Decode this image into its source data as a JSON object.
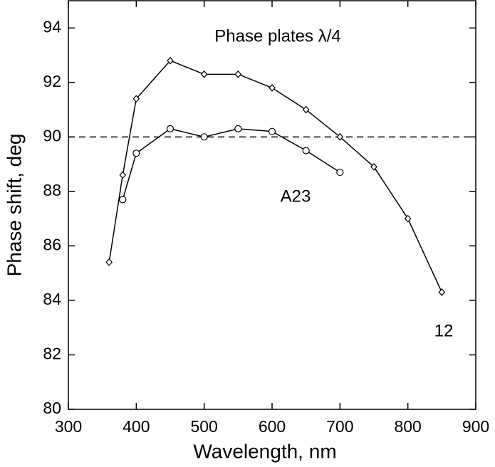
{
  "chart_data": {
    "type": "line",
    "title": "Phase plates λ/4",
    "x_label": "Wavelength, nm",
    "y_label": "Phase shift, deg",
    "xlim": [
      300,
      900
    ],
    "xticks": [
      300,
      400,
      500,
      600,
      700,
      800,
      900
    ],
    "ylim": [
      80,
      95
    ],
    "yticks": [
      80,
      82,
      84,
      86,
      88,
      90,
      92,
      94
    ],
    "hline": 90,
    "series": [
      {
        "name": "12",
        "color": "#000000",
        "marker": "diamond",
        "x": [
          360,
          380,
          400,
          450,
          500,
          550,
          600,
          650,
          700,
          750,
          800,
          850
        ],
        "values": [
          85.4,
          88.6,
          91.4,
          92.8,
          92.3,
          92.3,
          91.8,
          91.0,
          90.0,
          88.9,
          87.0,
          84.3
        ]
      },
      {
        "name": "A23",
        "color": "#000000",
        "marker": "circle",
        "x": [
          380,
          400,
          450,
          500,
          550,
          600,
          650,
          700
        ],
        "values": [
          87.7,
          89.4,
          90.3,
          90.0,
          90.3,
          90.2,
          89.5,
          88.7
        ]
      }
    ]
  }
}
